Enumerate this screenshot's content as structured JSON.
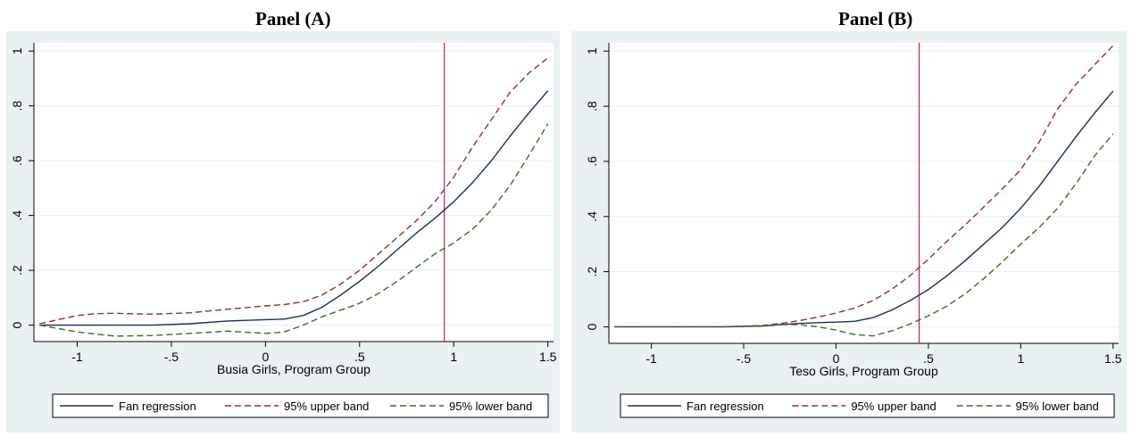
{
  "figure": {
    "caption_fragment": "(no separate caption visible)",
    "background": "#ffffff",
    "panel_background": "#eaf1f3",
    "plot_background": "#ffffff",
    "colors": {
      "fan": "#1a2f5a",
      "upper": "#9b2d2d",
      "lower": "#3d6b2a",
      "cutoff": "#c0204a",
      "grid": "#e8eef2"
    }
  },
  "chart_data": [
    {
      "type": "line",
      "title": "Panel (A)",
      "xlabel": "Busia Girls, Program Group",
      "ylabel": "",
      "xlim": [
        -1.23,
        1.53
      ],
      "ylim": [
        -0.06,
        1.03
      ],
      "xticks": [
        -1,
        -0.5,
        0,
        0.5,
        1,
        1.5
      ],
      "xtick_labels": [
        "-1",
        "-.5",
        "0",
        ".5",
        "1",
        "1.5"
      ],
      "yticks": [
        0,
        0.2,
        0.4,
        0.6,
        0.8,
        1
      ],
      "ytick_labels": [
        "0",
        ".2",
        ".4",
        ".6",
        ".8",
        "1"
      ],
      "grid": true,
      "vline": 0.95,
      "legend_position": "bottom",
      "series": [
        {
          "name": "Fan regression",
          "style": "solid",
          "x": [
            -1.2,
            -1.0,
            -0.8,
            -0.6,
            -0.4,
            -0.2,
            0.0,
            0.1,
            0.2,
            0.3,
            0.4,
            0.5,
            0.6,
            0.7,
            0.8,
            0.9,
            1.0,
            1.1,
            1.2,
            1.3,
            1.4,
            1.5
          ],
          "y": [
            0.0,
            0.0,
            0.0,
            0.0,
            0.005,
            0.015,
            0.02,
            0.022,
            0.035,
            0.065,
            0.11,
            0.16,
            0.215,
            0.275,
            0.335,
            0.39,
            0.45,
            0.52,
            0.6,
            0.69,
            0.775,
            0.855
          ]
        },
        {
          "name": "95% upper band",
          "style": "dashed",
          "x": [
            -1.2,
            -1.1,
            -1.0,
            -0.9,
            -0.8,
            -0.6,
            -0.4,
            -0.2,
            0.0,
            0.1,
            0.2,
            0.3,
            0.4,
            0.5,
            0.6,
            0.7,
            0.8,
            0.9,
            1.0,
            1.1,
            1.2,
            1.3,
            1.4,
            1.5
          ],
          "y": [
            0.005,
            0.02,
            0.035,
            0.042,
            0.043,
            0.04,
            0.045,
            0.058,
            0.07,
            0.075,
            0.085,
            0.11,
            0.15,
            0.2,
            0.26,
            0.32,
            0.38,
            0.45,
            0.54,
            0.65,
            0.75,
            0.85,
            0.92,
            0.975
          ]
        },
        {
          "name": "95% lower band",
          "style": "dashed",
          "x": [
            -1.2,
            -1.0,
            -0.8,
            -0.6,
            -0.4,
            -0.2,
            0.0,
            0.1,
            0.2,
            0.3,
            0.4,
            0.5,
            0.6,
            0.7,
            0.8,
            0.9,
            1.0,
            1.1,
            1.2,
            1.3,
            1.4,
            1.5
          ],
          "y": [
            0.0,
            -0.025,
            -0.04,
            -0.038,
            -0.03,
            -0.022,
            -0.03,
            -0.025,
            0.0,
            0.03,
            0.055,
            0.08,
            0.115,
            0.16,
            0.21,
            0.26,
            0.3,
            0.35,
            0.42,
            0.51,
            0.62,
            0.735
          ]
        }
      ]
    },
    {
      "type": "line",
      "title": "Panel (B)",
      "xlabel": "Teso Girls, Program Group",
      "ylabel": "",
      "xlim": [
        -1.23,
        1.53
      ],
      "ylim": [
        -0.06,
        1.03
      ],
      "xticks": [
        -1,
        -0.5,
        0,
        0.5,
        1,
        1.5
      ],
      "xtick_labels": [
        "-1",
        "-.5",
        "0",
        ".5",
        "1",
        "1.5"
      ],
      "yticks": [
        0,
        0.2,
        0.4,
        0.6,
        0.8,
        1
      ],
      "ytick_labels": [
        "0",
        ".2",
        ".4",
        ".6",
        ".8",
        "1"
      ],
      "grid": true,
      "vline": 0.45,
      "legend_position": "bottom",
      "series": [
        {
          "name": "Fan regression",
          "style": "solid",
          "x": [
            -1.2,
            -1.0,
            -0.8,
            -0.6,
            -0.4,
            -0.3,
            -0.2,
            -0.1,
            0.0,
            0.1,
            0.2,
            0.3,
            0.4,
            0.5,
            0.6,
            0.7,
            0.8,
            0.9,
            1.0,
            1.1,
            1.2,
            1.3,
            1.4,
            1.5
          ],
          "y": [
            0.0,
            0.0,
            0.0,
            0.0,
            0.003,
            0.008,
            0.012,
            0.015,
            0.017,
            0.02,
            0.033,
            0.06,
            0.095,
            0.135,
            0.185,
            0.24,
            0.3,
            0.36,
            0.43,
            0.51,
            0.6,
            0.69,
            0.775,
            0.855
          ]
        },
        {
          "name": "95% upper band",
          "style": "dashed",
          "x": [
            -1.2,
            -1.0,
            -0.8,
            -0.6,
            -0.4,
            -0.3,
            -0.2,
            -0.1,
            0.0,
            0.1,
            0.2,
            0.3,
            0.4,
            0.5,
            0.6,
            0.7,
            0.8,
            0.9,
            1.0,
            1.1,
            1.2,
            1.3,
            1.4,
            1.5
          ],
          "y": [
            0.0,
            0.0,
            0.0,
            0.0,
            0.005,
            0.012,
            0.022,
            0.035,
            0.05,
            0.068,
            0.095,
            0.135,
            0.185,
            0.245,
            0.31,
            0.37,
            0.435,
            0.5,
            0.57,
            0.67,
            0.79,
            0.88,
            0.95,
            1.02
          ]
        },
        {
          "name": "95% lower band",
          "style": "dashed",
          "x": [
            -1.2,
            -1.0,
            -0.8,
            -0.6,
            -0.4,
            -0.3,
            -0.2,
            -0.1,
            0.0,
            0.1,
            0.2,
            0.3,
            0.4,
            0.5,
            0.6,
            0.7,
            0.8,
            0.9,
            1.0,
            1.1,
            1.2,
            1.3,
            1.4,
            1.5
          ],
          "y": [
            0.0,
            0.0,
            0.0,
            0.0,
            0.003,
            0.008,
            0.008,
            0.0,
            -0.012,
            -0.028,
            -0.033,
            -0.015,
            0.01,
            0.04,
            0.075,
            0.12,
            0.175,
            0.235,
            0.3,
            0.36,
            0.43,
            0.52,
            0.62,
            0.7
          ]
        }
      ]
    }
  ]
}
